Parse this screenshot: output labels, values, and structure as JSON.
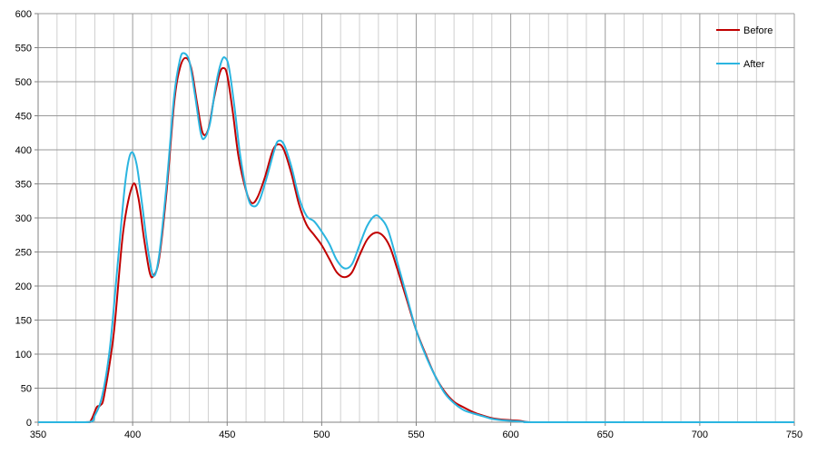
{
  "chart_data": {
    "type": "line",
    "title": "",
    "xlabel": "",
    "ylabel": "",
    "xlim": [
      350,
      750
    ],
    "ylim": [
      0,
      600
    ],
    "x_ticks": [
      350,
      400,
      450,
      500,
      550,
      600,
      650,
      700,
      750
    ],
    "y_ticks": [
      0,
      50,
      100,
      150,
      200,
      250,
      300,
      350,
      400,
      450,
      500,
      550,
      600
    ],
    "x_minor_step": 10,
    "grid": true,
    "legend_position": "top-right",
    "series": [
      {
        "name": "Before",
        "color": "#c00000",
        "points": [
          [
            350,
            0
          ],
          [
            375,
            0
          ],
          [
            378,
            3
          ],
          [
            381,
            22
          ],
          [
            383,
            25
          ],
          [
            385,
            40
          ],
          [
            390,
            130
          ],
          [
            395,
            280
          ],
          [
            400,
            348
          ],
          [
            403,
            330
          ],
          [
            406,
            270
          ],
          [
            409,
            220
          ],
          [
            411,
            215
          ],
          [
            414,
            240
          ],
          [
            418,
            340
          ],
          [
            422,
            470
          ],
          [
            425,
            520
          ],
          [
            428,
            535
          ],
          [
            431,
            520
          ],
          [
            434,
            470
          ],
          [
            437,
            425
          ],
          [
            440,
            430
          ],
          [
            443,
            475
          ],
          [
            446,
            512
          ],
          [
            448,
            520
          ],
          [
            450,
            510
          ],
          [
            453,
            455
          ],
          [
            456,
            390
          ],
          [
            460,
            340
          ],
          [
            463,
            322
          ],
          [
            466,
            330
          ],
          [
            470,
            360
          ],
          [
            474,
            398
          ],
          [
            477,
            408
          ],
          [
            480,
            400
          ],
          [
            484,
            365
          ],
          [
            488,
            320
          ],
          [
            492,
            290
          ],
          [
            496,
            275
          ],
          [
            500,
            260
          ],
          [
            504,
            240
          ],
          [
            508,
            220
          ],
          [
            512,
            213
          ],
          [
            516,
            220
          ],
          [
            520,
            245
          ],
          [
            524,
            268
          ],
          [
            528,
            278
          ],
          [
            532,
            275
          ],
          [
            536,
            258
          ],
          [
            540,
            225
          ],
          [
            545,
            180
          ],
          [
            550,
            135
          ],
          [
            555,
            100
          ],
          [
            560,
            68
          ],
          [
            565,
            45
          ],
          [
            570,
            30
          ],
          [
            575,
            22
          ],
          [
            580,
            15
          ],
          [
            585,
            10
          ],
          [
            590,
            6
          ],
          [
            595,
            4
          ],
          [
            600,
            3
          ],
          [
            605,
            2
          ],
          [
            610,
            0
          ],
          [
            620,
            0
          ],
          [
            750,
            0
          ]
        ]
      },
      {
        "name": "After",
        "color": "#2bb5e0",
        "points": [
          [
            350,
            0
          ],
          [
            376,
            0
          ],
          [
            380,
            10
          ],
          [
            384,
            40
          ],
          [
            388,
            110
          ],
          [
            392,
            230
          ],
          [
            396,
            350
          ],
          [
            399,
            395
          ],
          [
            402,
            380
          ],
          [
            405,
            320
          ],
          [
            408,
            255
          ],
          [
            411,
            215
          ],
          [
            414,
            245
          ],
          [
            418,
            350
          ],
          [
            422,
            480
          ],
          [
            425,
            532
          ],
          [
            427,
            542
          ],
          [
            430,
            530
          ],
          [
            433,
            480
          ],
          [
            436,
            425
          ],
          [
            438,
            417
          ],
          [
            441,
            440
          ],
          [
            444,
            495
          ],
          [
            447,
            530
          ],
          [
            449,
            535
          ],
          [
            451,
            520
          ],
          [
            454,
            460
          ],
          [
            457,
            390
          ],
          [
            461,
            330
          ],
          [
            464,
            317
          ],
          [
            467,
            325
          ],
          [
            471,
            360
          ],
          [
            475,
            400
          ],
          [
            477,
            413
          ],
          [
            480,
            408
          ],
          [
            484,
            375
          ],
          [
            488,
            330
          ],
          [
            492,
            303
          ],
          [
            496,
            295
          ],
          [
            500,
            280
          ],
          [
            504,
            262
          ],
          [
            508,
            238
          ],
          [
            512,
            226
          ],
          [
            516,
            232
          ],
          [
            520,
            260
          ],
          [
            524,
            288
          ],
          [
            528,
            303
          ],
          [
            531,
            300
          ],
          [
            535,
            283
          ],
          [
            540,
            235
          ],
          [
            545,
            185
          ],
          [
            550,
            135
          ],
          [
            555,
            98
          ],
          [
            560,
            68
          ],
          [
            565,
            43
          ],
          [
            570,
            28
          ],
          [
            575,
            18
          ],
          [
            580,
            13
          ],
          [
            585,
            9
          ],
          [
            590,
            5
          ],
          [
            595,
            3
          ],
          [
            600,
            2
          ],
          [
            605,
            1
          ],
          [
            610,
            0
          ],
          [
            620,
            0
          ],
          [
            750,
            0
          ]
        ]
      }
    ]
  }
}
